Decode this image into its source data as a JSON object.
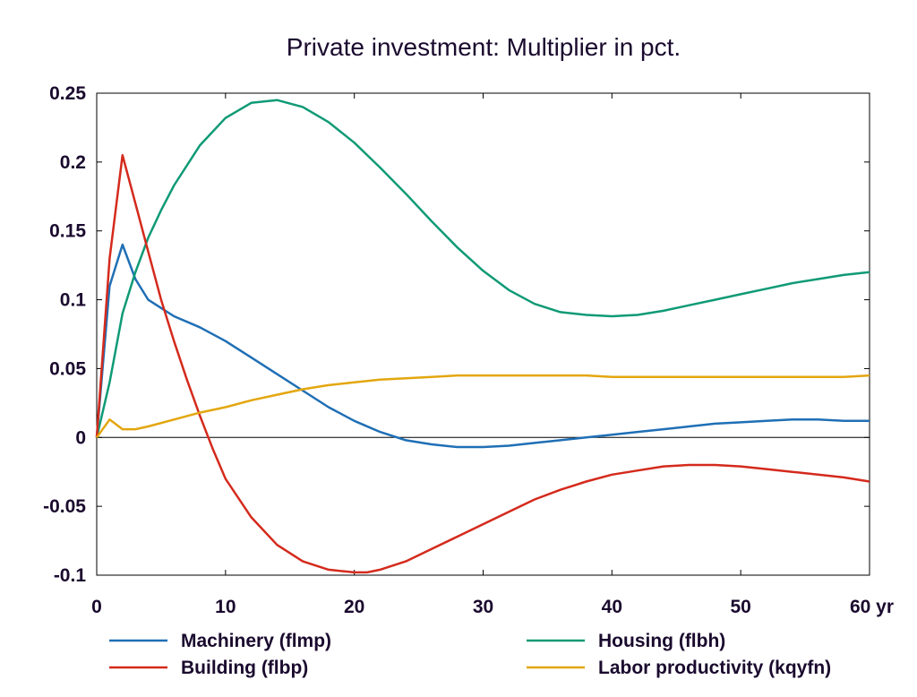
{
  "chart_data": {
    "type": "line",
    "title": "Private investment: Multiplier in pct.",
    "xlabel": "",
    "ylabel": "",
    "x_ticks": [
      0,
      10,
      20,
      30,
      40,
      50,
      60
    ],
    "x_tick_labels": [
      "0",
      "10",
      "20",
      "30",
      "40",
      "50",
      "60 yr"
    ],
    "y_ticks": [
      0.25,
      0.2,
      0.15,
      0.1,
      0.05,
      0,
      -0.05,
      -0.1
    ],
    "y_tick_labels": [
      "0.25",
      "0.2",
      "0.15",
      "0.1",
      "0.05",
      "0",
      "-0.05",
      "-0.1"
    ],
    "xlim": [
      0,
      60
    ],
    "ylim": [
      -0.1,
      0.25
    ],
    "grid": false,
    "legend_position": "bottom",
    "series": [
      {
        "name": "Machinery (flmp)",
        "color": "#1f6fb5",
        "x": [
          0,
          1,
          2,
          3,
          4,
          5,
          6,
          8,
          10,
          12,
          14,
          16,
          18,
          20,
          22,
          24,
          26,
          28,
          30,
          32,
          34,
          36,
          38,
          40,
          42,
          44,
          46,
          48,
          50,
          52,
          54,
          56,
          58,
          60
        ],
        "y": [
          0,
          0.11,
          0.14,
          0.115,
          0.1,
          0.094,
          0.088,
          0.08,
          0.07,
          0.058,
          0.046,
          0.034,
          0.022,
          0.012,
          0.004,
          -0.002,
          -0.005,
          -0.007,
          -0.007,
          -0.006,
          -0.004,
          -0.002,
          0,
          0.002,
          0.004,
          0.006,
          0.008,
          0.01,
          0.011,
          0.012,
          0.013,
          0.013,
          0.012,
          0.012
        ]
      },
      {
        "name": "Housing (flbh)",
        "color": "#0f9a76",
        "x": [
          0,
          1,
          2,
          3,
          4,
          5,
          6,
          8,
          10,
          12,
          14,
          16,
          18,
          20,
          22,
          24,
          26,
          28,
          30,
          32,
          34,
          36,
          38,
          40,
          42,
          44,
          46,
          48,
          50,
          52,
          54,
          56,
          58,
          60
        ],
        "y": [
          0,
          0.04,
          0.09,
          0.12,
          0.145,
          0.165,
          0.183,
          0.212,
          0.232,
          0.243,
          0.245,
          0.24,
          0.229,
          0.214,
          0.196,
          0.177,
          0.157,
          0.138,
          0.121,
          0.107,
          0.097,
          0.091,
          0.089,
          0.088,
          0.089,
          0.092,
          0.096,
          0.1,
          0.104,
          0.108,
          0.112,
          0.115,
          0.118,
          0.12
        ]
      },
      {
        "name": "Building (flbp)",
        "color": "#d42a1c",
        "x": [
          0,
          1,
          2,
          3,
          4,
          5,
          6,
          7,
          8,
          9,
          10,
          12,
          14,
          16,
          18,
          20,
          21,
          22,
          24,
          26,
          28,
          30,
          32,
          34,
          36,
          38,
          40,
          42,
          44,
          46,
          48,
          50,
          52,
          54,
          56,
          58,
          60
        ],
        "y": [
          0,
          0.13,
          0.205,
          0.17,
          0.135,
          0.1,
          0.07,
          0.042,
          0.016,
          -0.008,
          -0.03,
          -0.058,
          -0.078,
          -0.09,
          -0.096,
          -0.098,
          -0.098,
          -0.096,
          -0.09,
          -0.081,
          -0.072,
          -0.063,
          -0.054,
          -0.045,
          -0.038,
          -0.032,
          -0.027,
          -0.024,
          -0.021,
          -0.02,
          -0.02,
          -0.021,
          -0.023,
          -0.025,
          -0.027,
          -0.029,
          -0.032
        ]
      },
      {
        "name": "Labor productivity (kqyfn)",
        "color": "#e3a60e",
        "x": [
          0,
          1,
          2,
          3,
          4,
          6,
          8,
          10,
          12,
          14,
          16,
          18,
          20,
          22,
          24,
          26,
          28,
          30,
          32,
          34,
          36,
          38,
          40,
          42,
          44,
          46,
          48,
          50,
          52,
          54,
          56,
          58,
          60
        ],
        "y": [
          0,
          0.013,
          0.006,
          0.006,
          0.008,
          0.013,
          0.018,
          0.022,
          0.027,
          0.031,
          0.035,
          0.038,
          0.04,
          0.042,
          0.043,
          0.044,
          0.045,
          0.045,
          0.045,
          0.045,
          0.045,
          0.045,
          0.044,
          0.044,
          0.044,
          0.044,
          0.044,
          0.044,
          0.044,
          0.044,
          0.044,
          0.044,
          0.045
        ]
      }
    ]
  }
}
